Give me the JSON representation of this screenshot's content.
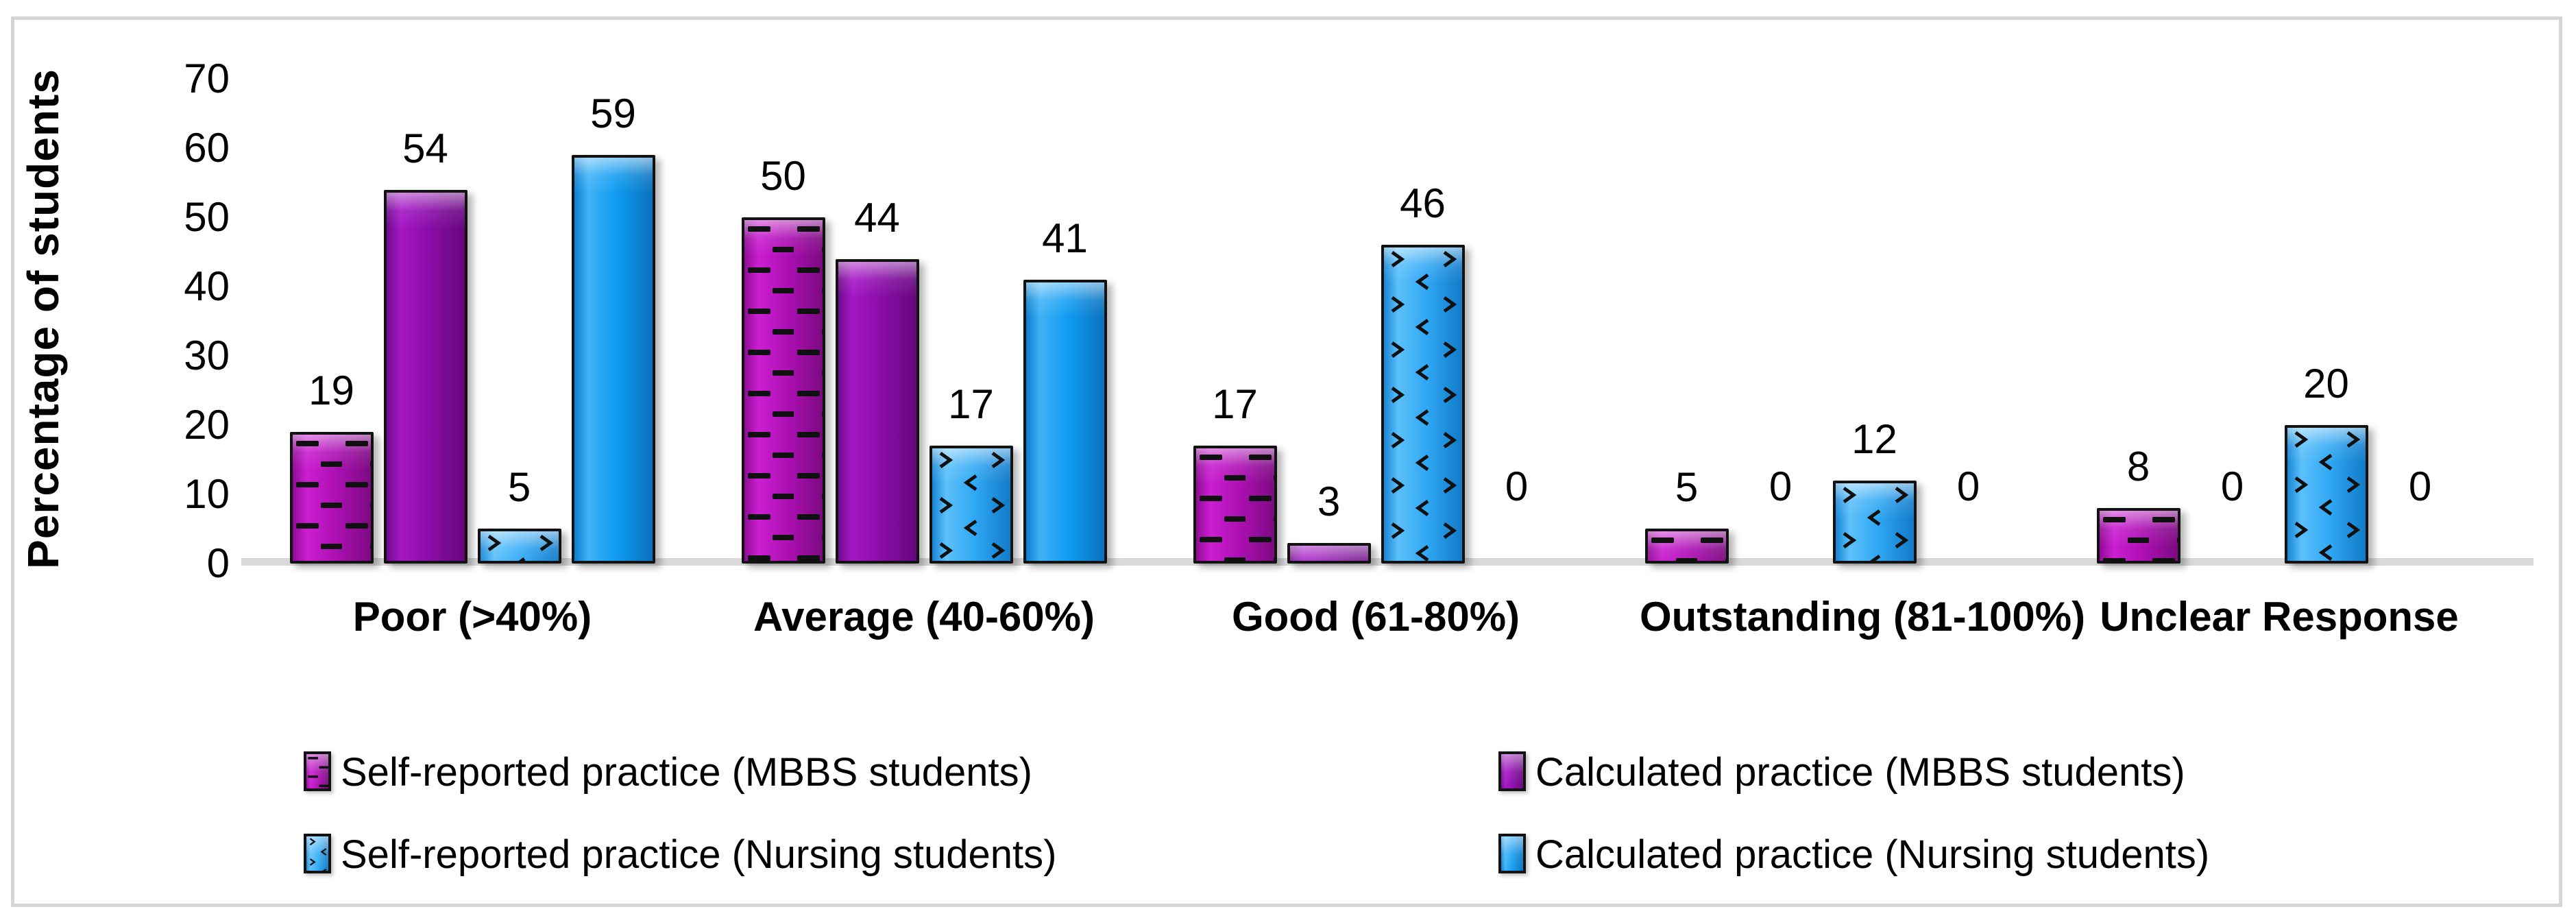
{
  "chart_data": {
    "type": "bar",
    "title": "",
    "xlabel": "",
    "ylabel": "Percentage of students",
    "ylim": [
      0,
      70
    ],
    "yticks": [
      0,
      10,
      20,
      30,
      40,
      50,
      60,
      70
    ],
    "grid": false,
    "legend_position": "bottom-two-columns",
    "categories": [
      "Poor (>40%)",
      "Average (40-60%)",
      "Good (61-80%)",
      "Outstanding (81-100%)",
      "Unclear Response"
    ],
    "series": [
      {
        "name": "Self-reported practice (MBBS students)",
        "pattern": "dash",
        "color": "#AD10B3",
        "values": [
          19,
          50,
          17,
          5,
          8
        ]
      },
      {
        "name": "Calculated practice (MBBS students)",
        "pattern": "solid",
        "color": "#8A0DA8",
        "values": [
          54,
          44,
          3,
          0,
          0
        ]
      },
      {
        "name": "Self-reported practice (Nursing students)",
        "pattern": "chevron",
        "color": "#2FA7F3",
        "values": [
          5,
          17,
          46,
          12,
          20
        ]
      },
      {
        "name": "Calculated practice (Nursing students)",
        "pattern": "solid",
        "color": "#0F9AF0",
        "values": [
          59,
          41,
          0,
          0,
          0
        ]
      }
    ],
    "axis_line_color": "#D9D9D9",
    "frame_color": "#D5D5D5"
  }
}
